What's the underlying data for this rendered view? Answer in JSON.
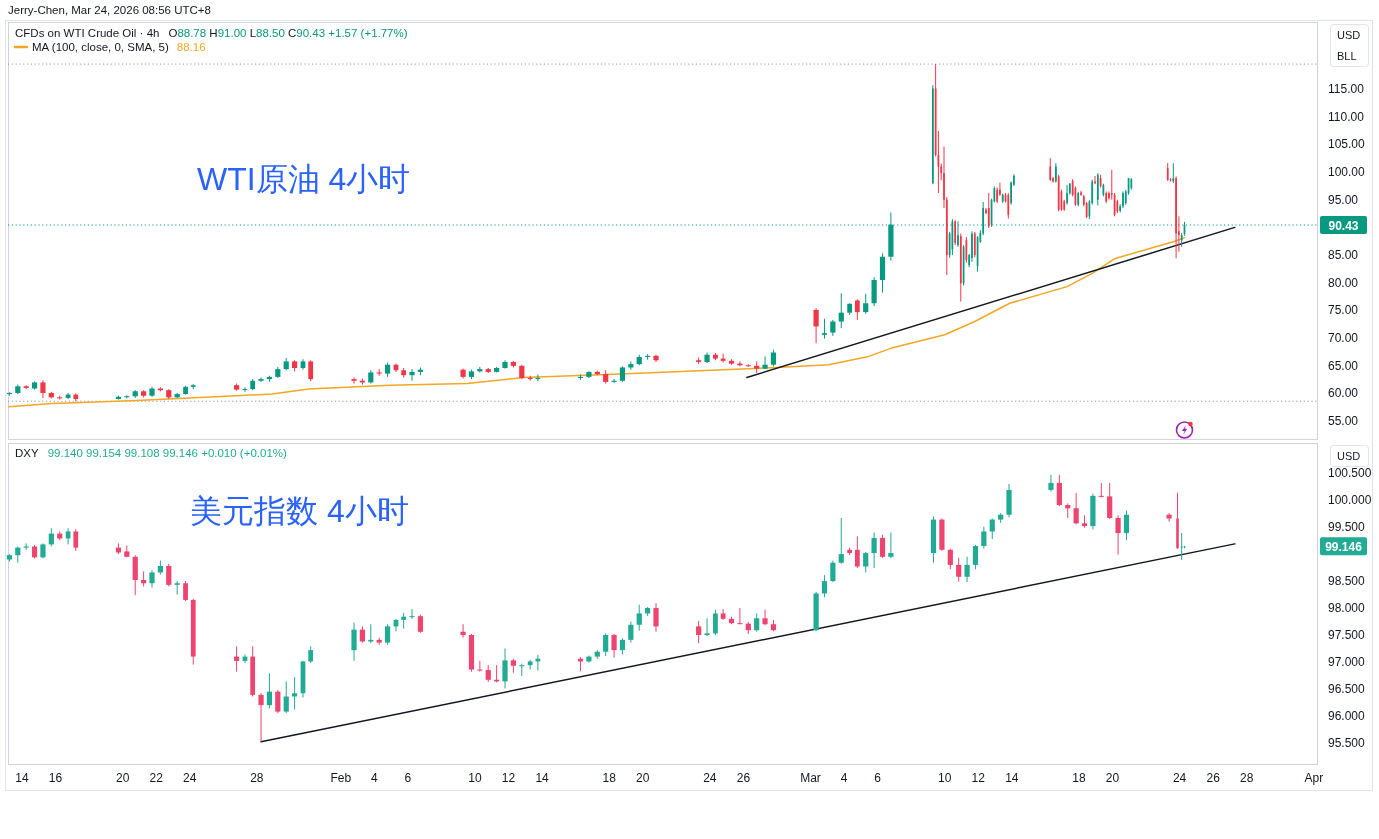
{
  "chart_data": [
    {
      "type": "candlestick",
      "title": "WTI原油 4小时",
      "subtitle": "CFDs on WTI Crude Oil · 4h",
      "ylabel": "USD",
      "annotations": [
        "Jerry-Chen, Mar 24, 2026 08:56 UTC+8",
        "O88.78 H91.00 L88.50 C90.43 +1.57 (+1.77%)",
        "88.16",
        "BLL"
      ],
      "x": [
        "2026-01-13T06:00",
        "2026-01-13T18:00",
        "2026-01-14T06:00",
        "2026-01-14T18:00",
        "2026-01-15T06:00",
        "2026-01-15T18:00",
        "2026-01-16T06:00",
        "2026-01-16T18:00",
        "2026-01-17T05:00",
        "2026-01-19T18:00",
        "2026-01-20T06:00",
        "2026-01-20T18:00",
        "2026-01-21T06:00",
        "2026-01-21T18:00",
        "2026-01-22T06:00",
        "2026-01-22T18:00",
        "2026-01-23T06:00",
        "2026-01-23T18:00",
        "2026-01-24T05:00",
        "2026-01-26T19:00",
        "2026-01-27T07:00",
        "2026-01-27T18:00",
        "2026-01-28T06:00",
        "2026-01-28T18:00",
        "2026-01-29T06:00",
        "2026-01-29T18:00",
        "2026-01-30T06:00",
        "2026-01-30T18:00",
        "2026-01-31T05:00",
        "2026-02-02T19:00",
        "2026-02-03T07:00",
        "2026-02-03T19:00",
        "2026-02-04T07:00",
        "2026-02-04T19:00",
        "2026-02-05T07:00",
        "2026-02-05T18:00",
        "2026-02-06T06:00",
        "2026-02-06T18:00",
        "2026-02-09T07:00",
        "2026-02-09T19:00",
        "2026-02-10T07:00",
        "2026-02-10T19:00",
        "2026-02-11T07:00",
        "2026-02-11T19:00",
        "2026-02-12T07:00",
        "2026-02-12T19:00",
        "2026-02-13T07:00",
        "2026-02-13T18:00",
        "2026-02-16T07:00",
        "2026-02-16T19:00",
        "2026-02-17T07:00",
        "2026-02-17T19:00",
        "2026-02-18T07:00",
        "2026-02-18T19:00",
        "2026-02-19T07:00",
        "2026-02-19T19:00",
        "2026-02-20T07:00",
        "2026-02-20T19:00",
        "2026-02-23T08:00",
        "2026-02-23T20:00",
        "2026-02-24T08:00",
        "2026-02-24T19:00",
        "2026-02-25T07:00",
        "2026-02-25T19:00",
        "2026-02-26T07:00",
        "2026-02-26T19:00",
        "2026-02-27T07:00",
        "2026-02-27T19:00",
        "2026-03-02T08:00",
        "2026-03-02T20:00",
        "2026-03-03T08:00",
        "2026-03-03T20:00",
        "2026-03-04T08:00",
        "2026-03-04T19:00",
        "2026-03-05T07:00",
        "2026-03-05T19:00",
        "2026-03-06T07:00",
        "2026-03-06T19:00",
        "2026-03-09T07:00",
        "2026-03-09T11:00",
        "2026-03-09T15:00",
        "2026-03-09T19:00",
        "2026-03-09T23:00",
        "2026-03-10T03:00",
        "2026-03-10T07:00",
        "2026-03-10T11:00",
        "2026-03-10T15:00",
        "2026-03-10T19:00",
        "2026-03-10T23:00",
        "2026-03-11T03:00",
        "2026-03-11T07:00",
        "2026-03-11T11:00",
        "2026-03-11T15:00",
        "2026-03-11T19:00",
        "2026-03-11T23:00",
        "2026-03-12T03:00",
        "2026-03-12T07:00",
        "2026-03-12T11:00",
        "2026-03-12T15:00",
        "2026-03-12T19:00",
        "2026-03-12T23:00",
        "2026-03-13T03:00",
        "2026-03-13T07:00",
        "2026-03-13T11:00",
        "2026-03-13T15:00",
        "2026-03-13T19:00",
        "2026-03-13T23:00",
        "2026-03-14T03:00",
        "2026-03-16T07:00",
        "2026-03-16T11:00",
        "2026-03-16T15:00",
        "2026-03-16T19:00",
        "2026-03-16T23:00",
        "2026-03-17T03:00",
        "2026-03-17T07:00",
        "2026-03-17T11:00",
        "2026-03-17T15:00",
        "2026-03-17T19:00",
        "2026-03-17T23:00",
        "2026-03-18T03:00",
        "2026-03-18T07:00",
        "2026-03-18T11:00",
        "2026-03-18T15:00",
        "2026-03-18T19:00",
        "2026-03-18T23:00",
        "2026-03-19T03:00",
        "2026-03-19T07:00",
        "2026-03-19T11:00",
        "2026-03-19T15:00",
        "2026-03-19T19:00",
        "2026-03-19T23:00",
        "2026-03-20T03:00",
        "2026-03-20T07:00",
        "2026-03-20T11:00",
        "2026-03-20T15:00",
        "2026-03-20T19:00",
        "2026-03-20T23:00",
        "2026-03-21T03:00",
        "2026-03-23T07:00",
        "2026-03-23T11:00",
        "2026-03-23T15:00",
        "2026-03-23T19:00",
        "2026-03-23T23:00",
        "2026-03-24T03:00",
        "2026-03-24T07:00"
      ],
      "ohlc": [
        [
          59.9,
          60.2,
          59.6,
          60.1
        ],
        [
          60.1,
          61.6,
          59.9,
          61.3
        ],
        [
          61.3,
          61.5,
          60.8,
          61.0
        ],
        [
          60.9,
          62.2,
          60.7,
          62.0
        ],
        [
          62.0,
          62.4,
          59.2,
          60.1
        ],
        [
          60.1,
          60.3,
          59.1,
          59.3
        ],
        [
          59.3,
          59.6,
          58.9,
          59.2
        ],
        [
          59.2,
          60.1,
          59.0,
          59.8
        ],
        [
          59.8,
          60.0,
          58.6,
          59.0
        ],
        [
          59.0,
          59.6,
          58.9,
          59.4
        ],
        [
          59.4,
          59.7,
          59.1,
          59.5
        ],
        [
          59.5,
          60.6,
          59.2,
          60.4
        ],
        [
          60.4,
          60.6,
          59.3,
          59.6
        ],
        [
          59.6,
          61.2,
          59.4,
          60.9
        ],
        [
          60.9,
          61.1,
          60.4,
          60.6
        ],
        [
          60.6,
          60.8,
          59.0,
          59.3
        ],
        [
          59.3,
          60.1,
          59.2,
          59.9
        ],
        [
          59.9,
          61.4,
          59.8,
          61.2
        ],
        [
          61.2,
          61.7,
          60.8,
          61.5
        ],
        [
          61.5,
          61.8,
          60.5,
          60.7
        ],
        [
          60.7,
          61.1,
          60.3,
          60.8
        ],
        [
          60.8,
          62.6,
          60.6,
          62.3
        ],
        [
          62.3,
          62.9,
          62.1,
          62.6
        ],
        [
          62.6,
          63.2,
          62.1,
          63.0
        ],
        [
          63.0,
          64.8,
          62.8,
          64.4
        ],
        [
          64.4,
          66.4,
          64.2,
          65.8
        ],
        [
          65.8,
          66.0,
          64.0,
          64.6
        ],
        [
          64.6,
          66.2,
          64.3,
          65.8
        ],
        [
          65.8,
          66.0,
          62.2,
          62.6
        ],
        [
          62.6,
          62.9,
          61.8,
          62.3
        ],
        [
          62.3,
          62.7,
          61.6,
          62.0
        ],
        [
          62.0,
          64.2,
          61.8,
          63.8
        ],
        [
          63.8,
          64.4,
          63.2,
          63.6
        ],
        [
          63.6,
          65.6,
          63.0,
          65.2
        ],
        [
          65.2,
          65.4,
          63.9,
          64.2
        ],
        [
          64.2,
          64.6,
          62.9,
          63.3
        ],
        [
          63.3,
          64.4,
          62.3,
          63.9
        ],
        [
          63.9,
          64.7,
          63.3,
          64.3
        ],
        [
          64.3,
          64.5,
          62.7,
          63.0
        ],
        [
          63.0,
          64.3,
          62.6,
          64.0
        ],
        [
          64.0,
          64.8,
          63.8,
          64.4
        ],
        [
          64.4,
          64.6,
          63.7,
          63.9
        ],
        [
          63.9,
          64.8,
          63.8,
          64.6
        ],
        [
          64.6,
          66.0,
          64.5,
          65.7
        ],
        [
          65.7,
          65.9,
          64.7,
          65.0
        ],
        [
          65.0,
          65.2,
          62.6,
          62.8
        ],
        [
          62.8,
          63.2,
          62.3,
          62.6
        ],
        [
          62.6,
          63.4,
          62.2,
          62.8
        ],
        [
          62.8,
          63.4,
          62.5,
          63.0
        ],
        [
          63.0,
          64.0,
          62.8,
          63.9
        ],
        [
          63.9,
          64.1,
          63.3,
          63.5
        ],
        [
          63.5,
          64.2,
          61.8,
          62.1
        ],
        [
          62.1,
          62.6,
          61.9,
          62.3
        ],
        [
          62.3,
          64.9,
          62.1,
          64.7
        ],
        [
          64.7,
          65.8,
          64.3,
          65.3
        ],
        [
          65.3,
          67.0,
          65.1,
          66.6
        ],
        [
          66.6,
          67.1,
          66.1,
          66.8
        ],
        [
          66.8,
          67.0,
          65.7,
          66.0
        ],
        [
          66.0,
          66.5,
          65.3,
          65.7
        ],
        [
          65.7,
          67.4,
          65.5,
          67.0
        ],
        [
          67.0,
          67.3,
          66.0,
          66.3
        ],
        [
          66.3,
          67.2,
          65.6,
          65.9
        ],
        [
          65.9,
          66.2,
          65.2,
          65.4
        ],
        [
          65.4,
          65.8,
          64.9,
          65.1
        ],
        [
          65.1,
          65.3,
          64.8,
          65.0
        ],
        [
          65.0,
          65.8,
          63.7,
          64.5
        ],
        [
          64.5,
          66.7,
          64.4,
          65.2
        ],
        [
          65.2,
          67.9,
          64.9,
          67.4
        ],
        [
          75.1,
          75.4,
          69.1,
          72.1
        ],
        [
          70.6,
          73.5,
          69.9,
          70.9
        ],
        [
          71.0,
          73.3,
          70.4,
          73.0
        ],
        [
          73.0,
          78.1,
          71.8,
          74.6
        ],
        [
          74.6,
          76.3,
          74.2,
          76.2
        ],
        [
          76.8,
          77.0,
          73.3,
          74.7
        ],
        [
          74.7,
          78.0,
          74.4,
          76.3
        ],
        [
          76.3,
          81.0,
          75.8,
          80.5
        ],
        [
          80.5,
          85.3,
          78.2,
          84.7
        ],
        [
          84.7,
          92.7,
          84.0,
          90.5
        ],
        [
          98.0,
          115.7,
          97.8,
          115.1
        ],
        [
          115.1,
          119.5,
          102.8,
          103.1
        ],
        [
          103.1,
          107.4,
          96.2,
          101.0
        ],
        [
          101.0,
          101.5,
          98.5,
          99.8
        ],
        [
          99.8,
          104.6,
          93.5,
          95.0
        ],
        [
          95.0,
          95.5,
          81.4,
          85.0
        ],
        [
          85.0,
          89.2,
          84.5,
          88.9
        ],
        [
          86.0,
          91.5,
          85.0,
          91.1
        ],
        [
          91.1,
          91.3,
          86.8,
          87.2
        ],
        [
          86.8,
          91.1,
          86.5,
          88.6
        ],
        [
          88.4,
          88.9,
          76.6,
          79.9
        ],
        [
          79.9,
          86.8,
          79.5,
          86.5
        ],
        [
          87.7,
          88.3,
          83.6,
          84.1
        ],
        [
          83.2,
          85.2,
          82.8,
          85.0
        ],
        [
          84.5,
          89.3,
          83.8,
          88.9
        ],
        [
          88.9,
          89.2,
          84.6,
          85.0
        ],
        [
          83.0,
          88.4,
          82.0,
          88.3
        ],
        [
          87.4,
          89.5,
          87.2,
          89.0
        ],
        [
          88.9,
          94.6,
          88.6,
          93.5
        ],
        [
          93.2,
          93.5,
          92.4,
          92.6
        ],
        [
          93.5,
          96.2,
          89.9,
          90.2
        ],
        [
          90.5,
          95.2,
          90.1,
          95.0
        ],
        [
          94.7,
          97.4,
          94.5,
          97.1
        ],
        [
          96.8,
          97.2,
          94.4,
          94.7
        ],
        [
          96.8,
          98.1,
          95.7,
          95.9
        ],
        [
          94.7,
          96.1,
          94.4,
          95.9
        ],
        [
          95.9,
          96.2,
          94.5,
          94.7
        ],
        [
          95.9,
          96.2,
          91.6,
          92.3
        ],
        [
          94.4,
          98.3,
          94.1,
          98.1
        ],
        [
          97.7,
          99.6,
          97.5,
          99.3
        ],
        [
          101.0,
          102.5,
          98.4,
          98.6
        ],
        [
          98.9,
          99.1,
          98.1,
          98.3
        ],
        [
          98.3,
          101.6,
          98.1,
          101.0
        ],
        [
          99.2,
          99.5,
          92.9,
          93.2
        ],
        [
          96.5,
          96.8,
          93.0,
          93.2
        ],
        [
          94.7,
          95.0,
          93.0,
          93.2
        ],
        [
          94.4,
          97.7,
          94.1,
          96.2
        ],
        [
          96.2,
          98.0,
          95.9,
          97.9
        ],
        [
          98.4,
          98.7,
          95.6,
          95.9
        ],
        [
          97.1,
          97.4,
          93.9,
          94.1
        ],
        [
          94.1,
          96.4,
          93.8,
          96.2
        ],
        [
          96.3,
          96.6,
          95.7,
          95.9
        ],
        [
          95.6,
          95.9,
          93.8,
          94.1
        ],
        [
          94.4,
          94.6,
          91.7,
          91.9
        ],
        [
          92.0,
          94.9,
          91.5,
          94.7
        ],
        [
          94.4,
          98.6,
          94.1,
          98.3
        ],
        [
          98.3,
          99.3,
          97.8,
          98.0
        ],
        [
          95.0,
          99.8,
          94.0,
          99.5
        ],
        [
          98.9,
          99.5,
          97.2,
          97.5
        ],
        [
          95.9,
          97.9,
          95.6,
          97.7
        ],
        [
          96.2,
          96.5,
          94.4,
          94.7
        ],
        [
          96.2,
          96.5,
          95.0,
          95.3
        ],
        [
          96.2,
          100.4,
          95.0,
          95.9
        ],
        [
          95.9,
          96.2,
          92.0,
          92.3
        ],
        [
          94.7,
          95.0,
          92.6,
          92.9
        ],
        [
          93.0,
          94.2,
          92.7,
          93.8
        ],
        [
          93.8,
          96.5,
          93.5,
          96.2
        ],
        [
          94.4,
          96.8,
          94.1,
          96.5
        ],
        [
          96.2,
          98.9,
          95.9,
          98.9
        ],
        [
          97.1,
          98.9,
          96.8,
          98.7
        ],
        [
          100.7,
          101.6,
          98.4,
          98.6
        ],
        [
          98.7,
          98.9,
          98.3,
          98.5
        ],
        [
          98.3,
          101.6,
          98.0,
          98.9
        ],
        [
          98.9,
          99.2,
          84.4,
          88.9
        ],
        [
          89.3,
          92.0,
          85.6,
          88.6
        ],
        [
          87.7,
          89.0,
          86.5,
          88.6
        ],
        [
          88.78,
          91.0,
          88.5,
          90.43
        ]
      ],
      "colors": [
        "#089981",
        "#089981",
        "#f23645",
        "#089981",
        "#f23645",
        "#f23645",
        "#f23645",
        "#089981",
        "#f23645",
        "#089981",
        "#089981",
        "#089981",
        "#f23645",
        "#089981",
        "#f23645",
        "#f23645",
        "#089981",
        "#089981",
        "#089981",
        "#f23645",
        "#089981",
        "#089981",
        "#089981",
        "#089981",
        "#089981",
        "#089981",
        "#f23645",
        "#089981",
        "#f23645",
        "#f23645",
        "#f23645",
        "#089981",
        "#f23645",
        "#089981",
        "#f23645",
        "#f23645",
        "#089981",
        "#089981",
        "#f23645",
        "#089981",
        "#089981",
        "#f23645",
        "#089981",
        "#089981",
        "#f23645",
        "#f23645",
        "#f23645",
        "#089981",
        "#089981",
        "#089981",
        "#f23645",
        "#f23645",
        "#089981",
        "#089981",
        "#089981",
        "#089981",
        "#089981",
        "#f23645",
        "#f23645",
        "#089981",
        "#f23645",
        "#f23645",
        "#f23645",
        "#f23645",
        "#f23645",
        "#f23645",
        "#089981",
        "#089981",
        "#f23645",
        "#089981",
        "#089981",
        "#089981",
        "#089981",
        "#f23645",
        "#089981",
        "#089981",
        "#089981",
        "#089981",
        "#089981",
        "#f23645",
        "#f23645",
        "#f23645",
        "#f23645",
        "#f23645",
        "#089981",
        "#089981",
        "#f23645",
        "#089981",
        "#f23645",
        "#089981",
        "#f23645",
        "#089981",
        "#089981",
        "#f23645",
        "#089981",
        "#089981",
        "#089981",
        "#f23645",
        "#f23645",
        "#089981",
        "#089981",
        "#f23645",
        "#f23645",
        "#089981",
        "#f23645",
        "#f23645",
        "#089981",
        "#089981",
        "#f23645",
        "#f23645",
        "#089981",
        "#f23645",
        "#f23645",
        "#f23645",
        "#089981",
        "#089981",
        "#f23645",
        "#f23645",
        "#089981",
        "#f23645",
        "#f23645",
        "#f23645",
        "#089981",
        "#089981",
        "#f23645",
        "#089981",
        "#f23645",
        "#089981",
        "#f23645",
        "#f23645",
        "#f23645",
        "#f23645",
        "#f23645",
        "#089981",
        "#089981",
        "#089981",
        "#089981",
        "#089981",
        "#f23645",
        "#f23645",
        "#089981",
        "#f23645",
        "#f23645",
        "#089981",
        "#089981"
      ],
      "series": [
        {
          "type": "line",
          "name": "MA (100, close, 0, SMA, 5)",
          "color": "#f5a623",
          "x": [
            "2026-01-13T05:00",
            "2026-01-15T19:00",
            "2026-01-20T12:00",
            "2026-01-23T09:00",
            "2026-01-28T22:00",
            "2026-01-31T02:00",
            "2026-02-04T22:00",
            "2026-02-09T13:00",
            "2026-02-12T22:00",
            "2026-02-18T16:00",
            "2026-02-24T02:00",
            "2026-02-26T16:00",
            "2026-03-03T02:00",
            "2026-03-05T11:00",
            "2026-03-06T20:00",
            "2026-03-10T00:00",
            "2026-03-11T19:00",
            "2026-03-13T21:00",
            "2026-03-17T07:00",
            "2026-03-18T19:00",
            "2026-03-20T04:00",
            "2026-03-23T15:00",
            "2026-03-24T07:00"
          ],
          "values": [
            57.6,
            58.2,
            58.7,
            59.1,
            59.9,
            60.8,
            61.5,
            61.8,
            62.9,
            63.5,
            64.2,
            64.5,
            65.2,
            66.7,
            68.2,
            70.6,
            73.0,
            76.3,
            79.3,
            81.7,
            84.4,
            87.4,
            88.16
          ]
        },
        {
          "type": "line",
          "color": "#131722",
          "x": [
            "2026-02-26T05:00",
            "2026-03-27T07:00"
          ],
          "values": [
            62.9,
            90.0
          ]
        }
      ],
      "xlim": [
        "2026-01-13T04:00",
        "2026-04-01T06:00"
      ],
      "ylim": [
        51.6,
        127.1
      ],
      "yticks": [
        {
          "value": 55,
          "label": "55.00"
        },
        {
          "value": 60,
          "label": "60.00"
        },
        {
          "value": 65,
          "label": "65.00"
        },
        {
          "value": 70,
          "label": "70.00"
        },
        {
          "value": 75,
          "label": "75.00"
        },
        {
          "value": 80,
          "label": "80.00"
        },
        {
          "value": 85,
          "label": "85.00"
        },
        {
          "value": 95,
          "label": "95.00"
        },
        {
          "value": 100,
          "label": "100.00"
        },
        {
          "value": 105,
          "label": "105.00"
        },
        {
          "value": 110,
          "label": "110.00"
        },
        {
          "value": 115,
          "label": "115.00"
        }
      ],
      "tick_labels": "y",
      "ref_lines": [
        {
          "axis": "y",
          "value": 90.43,
          "label": "90.43",
          "color": "#089981",
          "line_style": "dotted"
        },
        {
          "axis": "y",
          "value": 119.5,
          "color": "#9598a1",
          "line_style": "dotted"
        },
        {
          "axis": "y",
          "value": 58.6,
          "color": "#9598a1",
          "line_style": "dotted"
        }
      ],
      "legend": "top left"
    },
    {
      "type": "candlestick",
      "title": "美元指数 4小时",
      "subtitle": "DXY",
      "ylabel": "USD",
      "annotations": [
        "99.140 99.154 99.108 99.146 +0.010 (+0.01%)",
        "99.146"
      ],
      "x": [
        "2026-01-13T06:00",
        "2026-01-13T18:00",
        "2026-01-14T06:00",
        "2026-01-14T18:00",
        "2026-01-15T06:00",
        "2026-01-15T18:00",
        "2026-01-16T06:00",
        "2026-01-16T18:00",
        "2026-01-17T05:00",
        "2026-01-19T18:00",
        "2026-01-20T06:00",
        "2026-01-20T18:00",
        "2026-01-21T06:00",
        "2026-01-21T18:00",
        "2026-01-22T06:00",
        "2026-01-22T18:00",
        "2026-01-23T06:00",
        "2026-01-23T18:00",
        "2026-01-24T05:00",
        "2026-01-26T19:00",
        "2026-01-27T07:00",
        "2026-01-27T18:00",
        "2026-01-28T06:00",
        "2026-01-28T18:00",
        "2026-01-29T06:00",
        "2026-01-29T18:00",
        "2026-01-30T06:00",
        "2026-01-30T18:00",
        "2026-01-31T05:00",
        "2026-02-02T19:00",
        "2026-02-03T07:00",
        "2026-02-03T19:00",
        "2026-02-04T07:00",
        "2026-02-04T19:00",
        "2026-02-05T07:00",
        "2026-02-05T18:00",
        "2026-02-06T06:00",
        "2026-02-06T18:00",
        "2026-02-09T07:00",
        "2026-02-09T19:00",
        "2026-02-10T07:00",
        "2026-02-10T19:00",
        "2026-02-11T07:00",
        "2026-02-11T19:00",
        "2026-02-12T07:00",
        "2026-02-12T19:00",
        "2026-02-13T07:00",
        "2026-02-13T18:00",
        "2026-02-16T07:00",
        "2026-02-16T19:00",
        "2026-02-17T07:00",
        "2026-02-17T19:00",
        "2026-02-18T07:00",
        "2026-02-18T19:00",
        "2026-02-19T07:00",
        "2026-02-19T19:00",
        "2026-02-20T07:00",
        "2026-02-20T19:00",
        "2026-02-23T08:00",
        "2026-02-23T20:00",
        "2026-02-24T08:00",
        "2026-02-24T19:00",
        "2026-02-25T07:00",
        "2026-02-25T19:00",
        "2026-02-26T07:00",
        "2026-02-26T19:00",
        "2026-02-27T07:00",
        "2026-02-27T19:00",
        "2026-03-02T08:00",
        "2026-03-02T20:00",
        "2026-03-03T08:00",
        "2026-03-03T20:00",
        "2026-03-04T08:00",
        "2026-03-04T19:00",
        "2026-03-05T07:00",
        "2026-03-05T19:00",
        "2026-03-06T07:00",
        "2026-03-06T19:00",
        "2026-03-09T08:00",
        "2026-03-09T20:00",
        "2026-03-10T08:00",
        "2026-03-10T20:00",
        "2026-03-11T08:00",
        "2026-03-11T20:00",
        "2026-03-12T08:00",
        "2026-03-12T20:00",
        "2026-03-13T08:00",
        "2026-03-13T20:00",
        "2026-03-16T08:00",
        "2026-03-16T20:00",
        "2026-03-17T08:00",
        "2026-03-17T20:00",
        "2026-03-18T08:00",
        "2026-03-18T20:00",
        "2026-03-19T08:00",
        "2026-03-19T20:00",
        "2026-03-20T08:00",
        "2026-03-20T20:00",
        "2026-03-23T09:00",
        "2026-03-23T21:00",
        "2026-03-24T03:00",
        "2026-03-24T07:00"
      ],
      "ohlc": [
        [
          98.9,
          99.0,
          98.86,
          98.98
        ],
        [
          98.98,
          99.14,
          98.84,
          99.12
        ],
        [
          99.12,
          99.2,
          99.08,
          99.14
        ],
        [
          99.14,
          99.17,
          98.92,
          98.94
        ],
        [
          98.94,
          99.2,
          98.92,
          99.18
        ],
        [
          99.18,
          99.48,
          99.14,
          99.38
        ],
        [
          99.38,
          99.42,
          99.26,
          99.29
        ],
        [
          99.29,
          99.48,
          99.18,
          99.42
        ],
        [
          99.42,
          99.46,
          99.06,
          99.12
        ],
        [
          99.12,
          99.2,
          99.0,
          99.03
        ],
        [
          99.05,
          99.16,
          98.94,
          98.95
        ],
        [
          98.95,
          98.98,
          98.24,
          98.52
        ],
        [
          98.52,
          98.68,
          98.4,
          98.46
        ],
        [
          98.46,
          98.7,
          98.38,
          98.66
        ],
        [
          98.66,
          98.88,
          98.62,
          98.78
        ],
        [
          98.78,
          98.82,
          98.4,
          98.43
        ],
        [
          98.43,
          98.5,
          98.25,
          98.46
        ],
        [
          98.46,
          98.5,
          98.13,
          98.15
        ],
        [
          98.15,
          98.17,
          96.95,
          97.1
        ],
        [
          97.1,
          97.29,
          96.82,
          97.02
        ],
        [
          97.02,
          97.14,
          96.98,
          97.1
        ],
        [
          97.1,
          97.29,
          96.36,
          96.39
        ],
        [
          96.39,
          96.42,
          95.52,
          96.2
        ],
        [
          96.2,
          96.79,
          96.14,
          96.45
        ],
        [
          96.45,
          96.48,
          96.05,
          96.08
        ],
        [
          96.08,
          96.64,
          96.05,
          96.36
        ],
        [
          96.36,
          96.72,
          96.12,
          96.42
        ],
        [
          96.42,
          97.02,
          96.34,
          97.01
        ],
        [
          97.01,
          97.29,
          96.98,
          97.22
        ],
        [
          97.22,
          97.73,
          97.02,
          97.6
        ],
        [
          97.6,
          97.66,
          97.36,
          97.38
        ],
        [
          97.38,
          97.7,
          97.35,
          97.41
        ],
        [
          97.41,
          97.45,
          97.32,
          97.36
        ],
        [
          97.36,
          97.7,
          97.32,
          97.66
        ],
        [
          97.66,
          97.8,
          97.57,
          97.78
        ],
        [
          97.78,
          97.91,
          97.62,
          97.84
        ],
        [
          97.84,
          97.98,
          97.8,
          97.85
        ],
        [
          97.85,
          97.88,
          97.54,
          97.56
        ],
        [
          97.56,
          97.7,
          97.45,
          97.5
        ],
        [
          97.5,
          97.52,
          96.82,
          96.86
        ],
        [
          96.86,
          97.02,
          96.82,
          96.85
        ],
        [
          96.85,
          96.94,
          96.63,
          96.67
        ],
        [
          96.67,
          96.94,
          96.62,
          96.64
        ],
        [
          96.64,
          97.25,
          96.51,
          97.03
        ],
        [
          97.03,
          97.06,
          96.8,
          96.93
        ],
        [
          96.93,
          96.97,
          96.74,
          96.94
        ],
        [
          96.94,
          97.04,
          96.86,
          97.01
        ],
        [
          97.01,
          97.13,
          96.84,
          97.06
        ],
        [
          97.06,
          97.09,
          96.83,
          97.01
        ],
        [
          97.01,
          97.12,
          96.99,
          97.1
        ],
        [
          97.1,
          97.22,
          97.06,
          97.19
        ],
        [
          97.19,
          97.53,
          97.11,
          97.5
        ],
        [
          97.5,
          97.52,
          97.08,
          97.22
        ],
        [
          97.22,
          97.44,
          97.14,
          97.41
        ],
        [
          97.41,
          97.75,
          97.36,
          97.69
        ],
        [
          97.69,
          98.06,
          97.58,
          97.9
        ],
        [
          97.9,
          98.02,
          97.85,
          98.0
        ],
        [
          98.0,
          98.09,
          97.56,
          97.66
        ],
        [
          97.66,
          97.76,
          97.35,
          97.5
        ],
        [
          97.5,
          97.81,
          97.48,
          97.53
        ],
        [
          97.53,
          97.97,
          97.5,
          97.9
        ],
        [
          97.9,
          97.98,
          97.78,
          97.8
        ],
        [
          97.8,
          97.84,
          97.7,
          97.72
        ],
        [
          97.72,
          98.0,
          97.7,
          97.71
        ],
        [
          97.71,
          97.74,
          97.52,
          97.59
        ],
        [
          97.59,
          97.9,
          97.56,
          97.81
        ],
        [
          97.81,
          97.97,
          97.68,
          97.7
        ],
        [
          97.7,
          97.78,
          97.57,
          97.59
        ],
        [
          97.59,
          98.3,
          97.57,
          98.27
        ],
        [
          98.27,
          98.61,
          98.2,
          98.5
        ],
        [
          98.5,
          98.88,
          98.48,
          98.84
        ],
        [
          98.84,
          99.67,
          98.82,
          99.0
        ],
        [
          99.08,
          99.12,
          98.98,
          99.02
        ],
        [
          99.08,
          99.33,
          98.74,
          98.77
        ],
        [
          98.77,
          99.04,
          98.66,
          99.02
        ],
        [
          99.02,
          99.4,
          98.74,
          99.3
        ],
        [
          99.3,
          99.36,
          98.93,
          98.95
        ],
        [
          98.95,
          99.4,
          98.92,
          99.02
        ],
        [
          99.02,
          99.7,
          98.84,
          99.64
        ],
        [
          99.64,
          99.66,
          99.06,
          99.08
        ],
        [
          99.08,
          99.1,
          98.72,
          98.8
        ],
        [
          98.8,
          98.93,
          98.49,
          98.58
        ],
        [
          98.58,
          98.95,
          98.48,
          98.8
        ],
        [
          98.8,
          99.17,
          98.72,
          99.15
        ],
        [
          99.15,
          99.51,
          99.1,
          99.42
        ],
        [
          99.42,
          99.66,
          99.28,
          99.64
        ],
        [
          99.64,
          99.76,
          99.58,
          99.73
        ],
        [
          99.73,
          100.3,
          99.68,
          100.19
        ],
        [
          100.19,
          100.47,
          100.16,
          100.32
        ],
        [
          100.32,
          100.47,
          99.89,
          99.91
        ],
        [
          99.91,
          99.94,
          99.67,
          99.85
        ],
        [
          99.85,
          100.13,
          99.55,
          99.57
        ],
        [
          99.57,
          99.72,
          99.49,
          99.52
        ],
        [
          99.52,
          100.12,
          99.46,
          100.08
        ],
        [
          100.08,
          100.32,
          100.05,
          100.07
        ],
        [
          100.07,
          100.32,
          99.65,
          99.67
        ],
        [
          99.67,
          99.72,
          98.99,
          99.39
        ],
        [
          99.39,
          99.81,
          99.26,
          99.73
        ],
        [
          99.73,
          99.76,
          99.6,
          99.66
        ],
        [
          99.66,
          100.14,
          99.1,
          99.11
        ],
        [
          99.11,
          99.39,
          98.89,
          99.14
        ],
        [
          99.14,
          99.154,
          99.108,
          99.146
        ]
      ],
      "colors": [
        "#22ab94",
        "#22ab94",
        "#22ab94",
        "#ef4370",
        "#22ab94",
        "#22ab94",
        "#ef4370",
        "#22ab94",
        "#ef4370",
        "#ef4370",
        "#ef4370",
        "#ef4370",
        "#ef4370",
        "#22ab94",
        "#22ab94",
        "#ef4370",
        "#22ab94",
        "#ef4370",
        "#ef4370",
        "#ef4370",
        "#22ab94",
        "#ef4370",
        "#ef4370",
        "#22ab94",
        "#ef4370",
        "#22ab94",
        "#22ab94",
        "#22ab94",
        "#22ab94",
        "#22ab94",
        "#ef4370",
        "#22ab94",
        "#ef4370",
        "#22ab94",
        "#22ab94",
        "#22ab94",
        "#22ab94",
        "#ef4370",
        "#ef4370",
        "#ef4370",
        "#ef4370",
        "#ef4370",
        "#ef4370",
        "#22ab94",
        "#ef4370",
        "#22ab94",
        "#22ab94",
        "#22ab94",
        "#ef4370",
        "#22ab94",
        "#22ab94",
        "#22ab94",
        "#ef4370",
        "#22ab94",
        "#22ab94",
        "#22ab94",
        "#22ab94",
        "#ef4370",
        "#ef4370",
        "#22ab94",
        "#22ab94",
        "#ef4370",
        "#ef4370",
        "#ef4370",
        "#ef4370",
        "#22ab94",
        "#ef4370",
        "#ef4370",
        "#22ab94",
        "#22ab94",
        "#22ab94",
        "#22ab94",
        "#ef4370",
        "#ef4370",
        "#22ab94",
        "#22ab94",
        "#ef4370",
        "#22ab94",
        "#22ab94",
        "#ef4370",
        "#ef4370",
        "#ef4370",
        "#22ab94",
        "#22ab94",
        "#22ab94",
        "#22ab94",
        "#22ab94",
        "#22ab94",
        "#22ab94",
        "#ef4370",
        "#ef4370",
        "#ef4370",
        "#ef4370",
        "#22ab94",
        "#ef4370",
        "#ef4370",
        "#ef4370",
        "#22ab94",
        "#ef4370",
        "#ef4370",
        "#22ab94",
        "#22ab94"
      ],
      "series": [
        {
          "type": "line",
          "color": "#131722",
          "x": [
            "2026-01-28T06:00",
            "2026-03-27T07:00"
          ],
          "values": [
            95.52,
            99.19
          ]
        }
      ],
      "xlim": [
        "2026-01-13T04:00",
        "2026-04-01T06:00"
      ],
      "xticks": [
        {
          "value": "2026-01-14",
          "label": "14"
        },
        {
          "value": "2026-01-16",
          "label": "16"
        },
        {
          "value": "2026-01-20",
          "label": "20"
        },
        {
          "value": "2026-01-22",
          "label": "22"
        },
        {
          "value": "2026-01-24",
          "label": "24"
        },
        {
          "value": "2026-01-28",
          "label": "28"
        },
        {
          "value": "2026-02-02",
          "label": "Feb"
        },
        {
          "value": "2026-02-04",
          "label": "4"
        },
        {
          "value": "2026-02-06",
          "label": "6"
        },
        {
          "value": "2026-02-10",
          "label": "10"
        },
        {
          "value": "2026-02-12",
          "label": "12"
        },
        {
          "value": "2026-02-14",
          "label": "14"
        },
        {
          "value": "2026-02-18",
          "label": "18"
        },
        {
          "value": "2026-02-20",
          "label": "20"
        },
        {
          "value": "2026-02-24",
          "label": "24"
        },
        {
          "value": "2026-02-26",
          "label": "26"
        },
        {
          "value": "2026-03-02",
          "label": "Mar"
        },
        {
          "value": "2026-03-04",
          "label": "4"
        },
        {
          "value": "2026-03-06",
          "label": "6"
        },
        {
          "value": "2026-03-10",
          "label": "10"
        },
        {
          "value": "2026-03-12",
          "label": "12"
        },
        {
          "value": "2026-03-14",
          "label": "14"
        },
        {
          "value": "2026-03-18",
          "label": "18"
        },
        {
          "value": "2026-03-20",
          "label": "20"
        },
        {
          "value": "2026-03-24",
          "label": "24"
        },
        {
          "value": "2026-03-26",
          "label": "26"
        },
        {
          "value": "2026-03-28",
          "label": "28"
        },
        {
          "value": "2026-04-01",
          "label": "Apr"
        }
      ],
      "ylim": [
        95.09,
        101.06
      ],
      "yticks": [
        {
          "value": 95.5,
          "label": "95.500"
        },
        {
          "value": 96,
          "label": "96.000"
        },
        {
          "value": 96.5,
          "label": "96.500"
        },
        {
          "value": 97,
          "label": "97.000"
        },
        {
          "value": 97.5,
          "label": "97.500"
        },
        {
          "value": 98,
          "label": "98.000"
        },
        {
          "value": 98.5,
          "label": "98.500"
        },
        {
          "value": 99.5,
          "label": "99.500"
        },
        {
          "value": 100,
          "label": "100.000"
        },
        {
          "value": 100.5,
          "label": "100.500"
        }
      ]
    }
  ]
}
